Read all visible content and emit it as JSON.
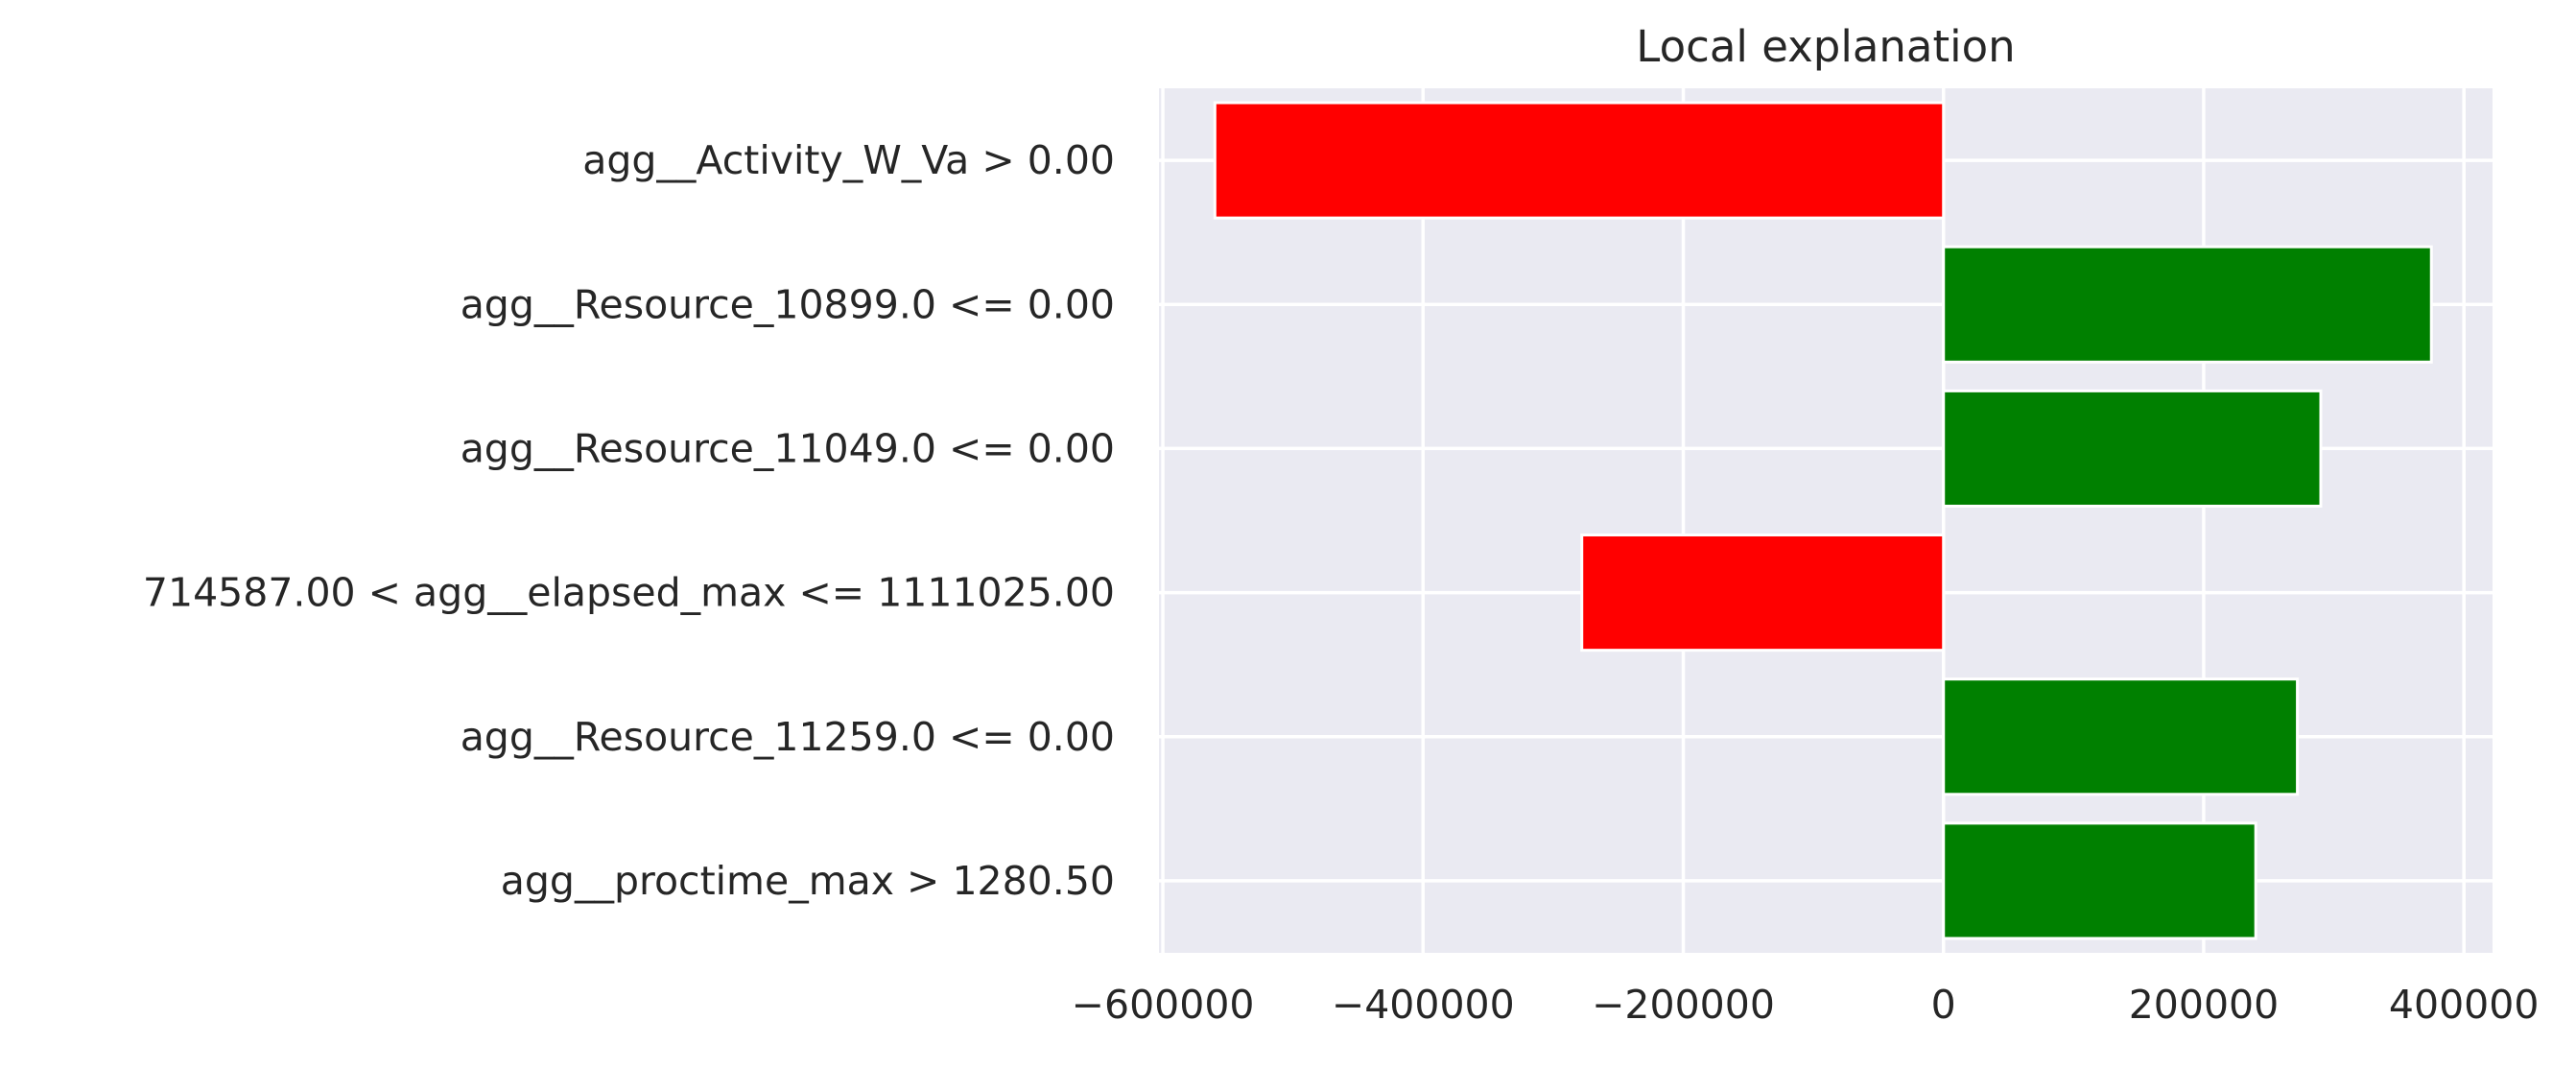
{
  "chart_data": {
    "type": "bar",
    "orientation": "horizontal",
    "title": "Local explanation",
    "xlabel": "",
    "ylabel": "",
    "categories": [
      "agg__Activity_W_Va > 0.00",
      "agg__Resource_10899.0 <= 0.00",
      "agg__Resource_11049.0 <= 0.00",
      "714587.00 < agg__elapsed_max <= 1111025.00",
      "agg__Resource_11259.0 <= 0.00",
      "agg__proctime_max > 1280.50"
    ],
    "values": [
      -560000,
      375000,
      290000,
      -278000,
      272000,
      240000
    ],
    "bar_colors": [
      "#ff0000",
      "#008000",
      "#008000",
      "#ff0000",
      "#008000",
      "#008000"
    ],
    "xlim": [
      -603000,
      422000
    ],
    "xticks": [
      -600000,
      -400000,
      -200000,
      0,
      200000,
      400000
    ],
    "xtick_labels": [
      "−600000",
      "−400000",
      "−200000",
      "0",
      "200000",
      "400000"
    ],
    "grid": true,
    "background": "#eaeaf2",
    "grid_color": "#ffffff"
  }
}
